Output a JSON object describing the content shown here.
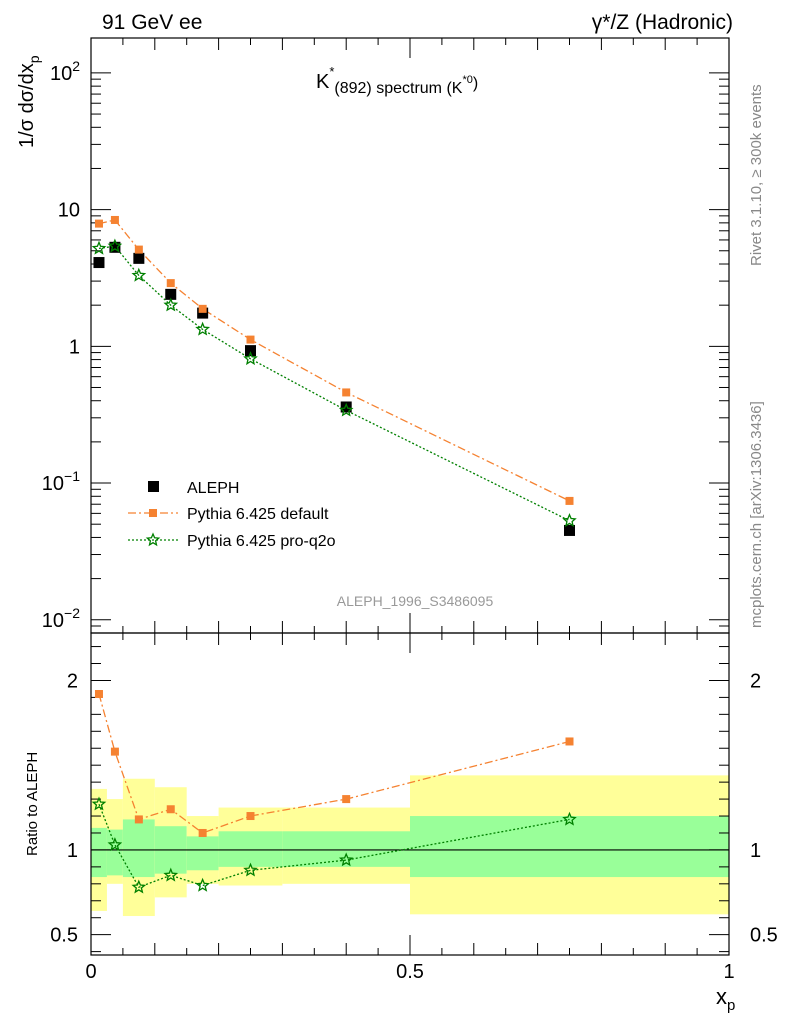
{
  "header": {
    "left": "91 GeV ee",
    "right": "γ*/Z (Hadronic)"
  },
  "side_labels": {
    "rivet": "Rivet 3.1.10, ≥ 300k events",
    "mcplots": "mcplots.cern.ch [arXiv:1306.3436]"
  },
  "analysis_tag": "ALEPH_1996_S3486095",
  "colors": {
    "data": "#000000",
    "default": "#f58231",
    "proq2o": "#008000",
    "band_inner": "#99ff99",
    "band_outer": "#ffff99"
  },
  "chart_data": [
    {
      "type": "scatter",
      "title_parts": {
        "main": "K",
        "sup": "*",
        "sub": "(892) spectrum (K",
        "sup2": "*0",
        "end": ")"
      },
      "ylabel": "1/σ dσ/dx",
      "ylabel_sub": "p",
      "yscale": "log",
      "ylim": [
        0.008,
        180
      ],
      "xlim": [
        0,
        1
      ],
      "ytick_labels": {
        "0.01": {
          "base": "10",
          "exp": "−2"
        },
        "0.1": {
          "base": "10",
          "exp": "−1"
        },
        "1": {
          "base": "1",
          "exp": ""
        },
        "10": {
          "base": "10",
          "exp": ""
        },
        "100": {
          "base": "10",
          "exp": "2"
        }
      },
      "legend_position": "lower-left",
      "series": [
        {
          "key": "aleph",
          "name": "ALEPH",
          "marker": "square",
          "x": [
            0.0125,
            0.0375,
            0.075,
            0.125,
            0.175,
            0.25,
            0.4,
            0.75
          ],
          "y": [
            4.1,
            5.3,
            4.4,
            2.4,
            1.75,
            0.93,
            0.36,
            0.045
          ],
          "xerr": [
            0.0125,
            0.0125,
            0.025,
            0.025,
            0.025,
            0.05,
            0.1,
            0.25
          ]
        },
        {
          "key": "default",
          "name": "Pythia 6.425 default",
          "marker": "small-square",
          "line": "dashdot",
          "x": [
            0.0125,
            0.0375,
            0.075,
            0.125,
            0.175,
            0.25,
            0.4,
            0.75
          ],
          "y": [
            7.9,
            8.4,
            5.1,
            2.9,
            1.88,
            1.12,
            0.46,
            0.074
          ]
        },
        {
          "key": "proq2o",
          "name": "Pythia 6.425 pro-q2o",
          "marker": "star",
          "line": "dotted",
          "x": [
            0.0125,
            0.0375,
            0.075,
            0.125,
            0.175,
            0.25,
            0.4,
            0.75
          ],
          "y": [
            5.2,
            5.4,
            3.3,
            2.0,
            1.33,
            0.81,
            0.34,
            0.053
          ]
        }
      ]
    },
    {
      "type": "scatter",
      "ylabel": "Ratio to ALEPH",
      "xlabel": "x",
      "xlabel_sub": "p",
      "ylim": [
        0.38,
        2.28
      ],
      "xlim": [
        0,
        1
      ],
      "yticks": [
        0.5,
        1,
        2
      ],
      "ytick_labels": [
        "0.5",
        "1",
        "2"
      ],
      "xticks": [
        0,
        0.5,
        1
      ],
      "xtick_labels": [
        "0",
        "0.5",
        "1"
      ],
      "bands": [
        {
          "x0": 0.0,
          "x1": 0.025,
          "inner": [
            0.84,
            1.13
          ],
          "outer": [
            0.64,
            1.36
          ]
        },
        {
          "x0": 0.025,
          "x1": 0.05,
          "inner": [
            0.85,
            1.12
          ],
          "outer": [
            0.8,
            1.3
          ]
        },
        {
          "x0": 0.05,
          "x1": 0.1,
          "inner": [
            0.84,
            1.18
          ],
          "outer": [
            0.61,
            1.42
          ]
        },
        {
          "x0": 0.1,
          "x1": 0.15,
          "inner": [
            0.86,
            1.14
          ],
          "outer": [
            0.72,
            1.37
          ]
        },
        {
          "x0": 0.15,
          "x1": 0.2,
          "inner": [
            0.88,
            1.08
          ],
          "outer": [
            0.8,
            1.2
          ]
        },
        {
          "x0": 0.2,
          "x1": 0.3,
          "inner": [
            0.9,
            1.11
          ],
          "outer": [
            0.79,
            1.25
          ]
        },
        {
          "x0": 0.3,
          "x1": 0.5,
          "inner": [
            0.9,
            1.11
          ],
          "outer": [
            0.8,
            1.25
          ]
        },
        {
          "x0": 0.5,
          "x1": 1.0,
          "inner": [
            0.84,
            1.2
          ],
          "outer": [
            0.62,
            1.44
          ]
        }
      ],
      "series": [
        {
          "key": "default",
          "name": "Pythia 6.425 default",
          "marker": "small-square",
          "line": "dashdot",
          "x": [
            0.0125,
            0.0375,
            0.075,
            0.125,
            0.175,
            0.25,
            0.4,
            0.75
          ],
          "y": [
            1.92,
            1.58,
            1.18,
            1.24,
            1.1,
            1.2,
            1.3,
            1.64
          ]
        },
        {
          "key": "proq2o",
          "name": "Pythia 6.425 pro-q2o",
          "marker": "star",
          "line": "dotted",
          "x": [
            0.0125,
            0.0375,
            0.075,
            0.125,
            0.175,
            0.25,
            0.4,
            0.75
          ],
          "y": [
            1.27,
            1.03,
            0.78,
            0.85,
            0.79,
            0.88,
            0.94,
            1.18
          ]
        }
      ]
    }
  ]
}
